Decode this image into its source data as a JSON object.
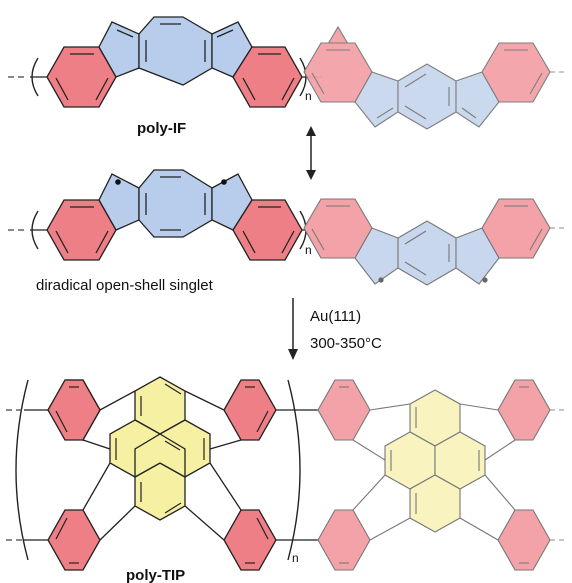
{
  "labels": {
    "poly_if": "poly-IF",
    "diradical": "diradical open-shell singlet",
    "surface": "Au(111)",
    "temperature": "300-350°C",
    "poly_tip": "poly-TIP",
    "n": "n"
  },
  "colors": {
    "red_ring": "#ee7f86",
    "blue_ring": "#b8cdeb",
    "yellow_ring": "#f5f0a2",
    "red_ring_faded": "#f3a3a8",
    "yellow_ring_faded": "#f8f3bf",
    "blue_ring_faded": "#c8d7ee"
  }
}
